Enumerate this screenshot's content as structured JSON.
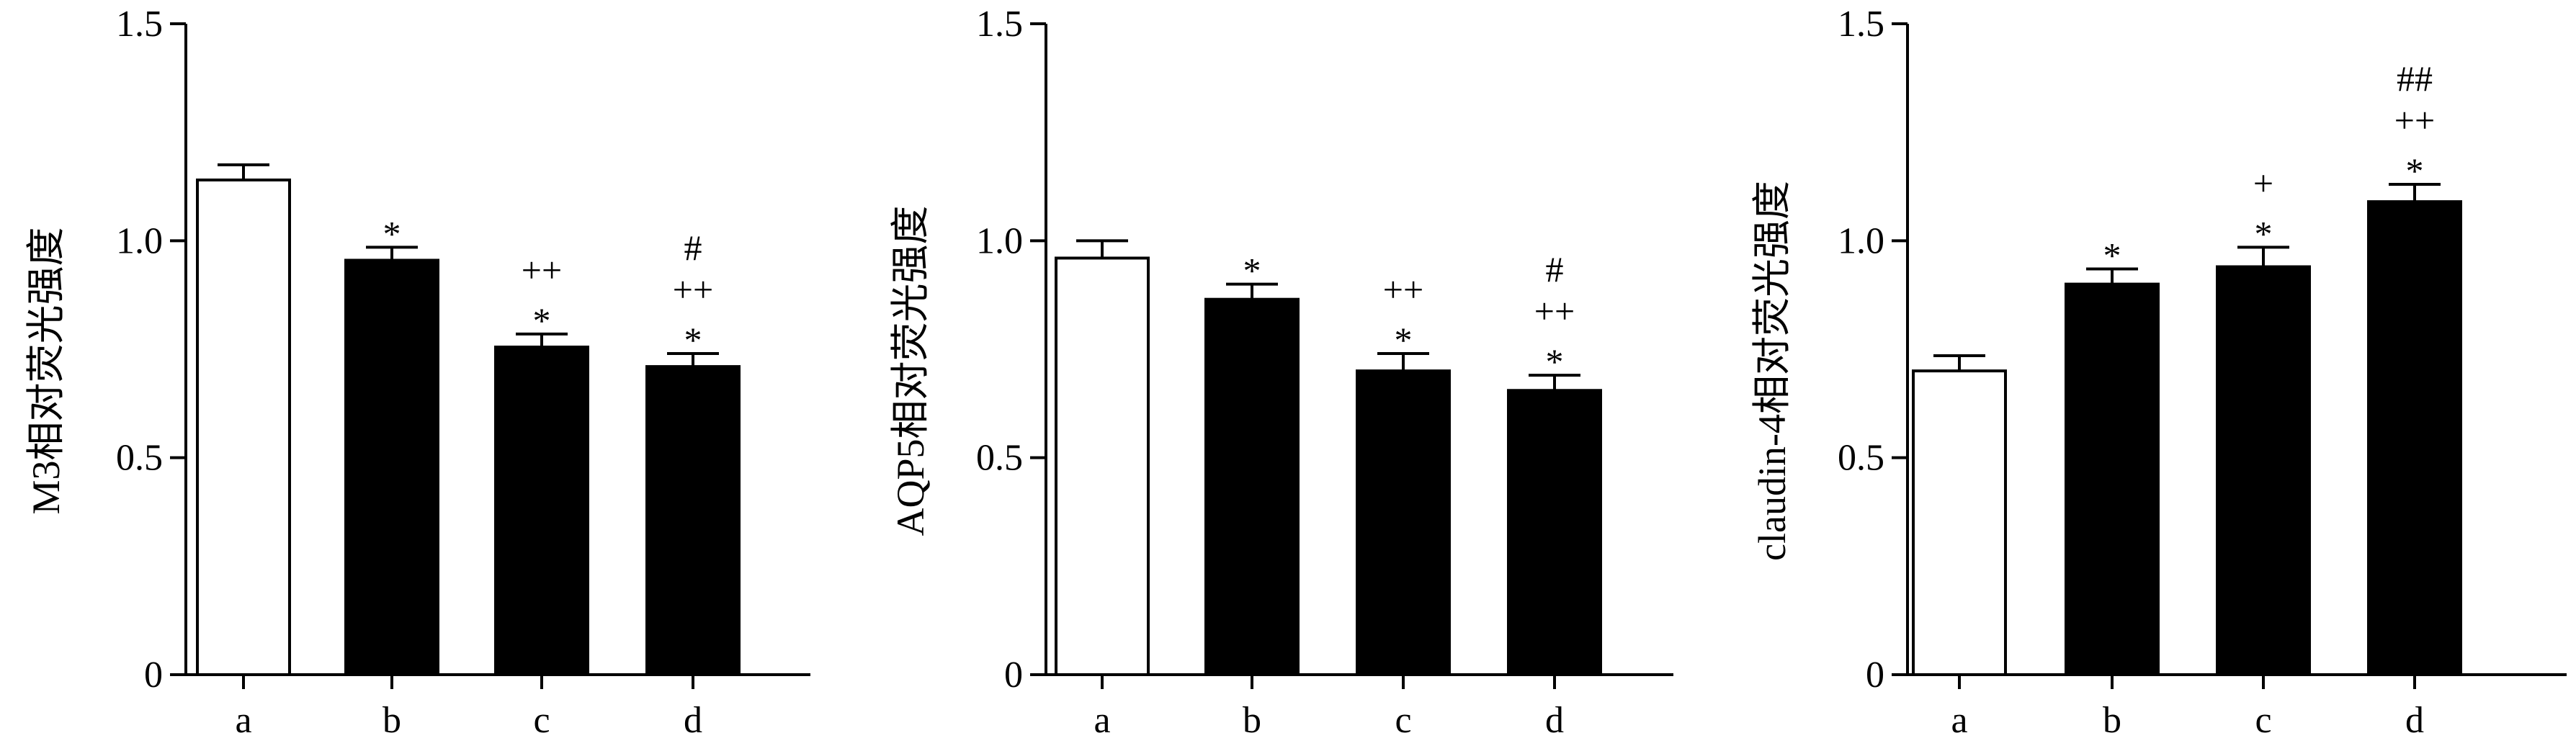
{
  "chart_data": [
    {
      "type": "bar",
      "ylabel": "M3相对荧光强度",
      "categories": [
        "a",
        "b",
        "c",
        "d"
      ],
      "values": [
        1.14,
        0.955,
        0.755,
        0.71
      ],
      "errors": [
        0.035,
        0.03,
        0.03,
        0.03
      ],
      "fills": [
        "#ffffff",
        "#000000",
        "#000000",
        "#000000"
      ],
      "annotations": [
        [],
        [
          "*"
        ],
        [
          "*",
          "++"
        ],
        [
          "*",
          "++",
          "#"
        ]
      ],
      "ylim": [
        0,
        1.5
      ],
      "yticks": [
        0,
        0.5,
        1.0,
        1.5
      ],
      "ytick_labels": [
        "0",
        "0.5",
        "1.0",
        "1.5"
      ]
    },
    {
      "type": "bar",
      "ylabel": "AQP5相对荧光强度",
      "categories": [
        "a",
        "b",
        "c",
        "d"
      ],
      "values": [
        0.96,
        0.865,
        0.7,
        0.655
      ],
      "errors": [
        0.04,
        0.035,
        0.04,
        0.035
      ],
      "fills": [
        "#ffffff",
        "#000000",
        "#000000",
        "#000000"
      ],
      "annotations": [
        [],
        [
          "*"
        ],
        [
          "*",
          "++"
        ],
        [
          "*",
          "++",
          "#"
        ]
      ],
      "ylim": [
        0,
        1.5
      ],
      "yticks": [
        0,
        0.5,
        1.0,
        1.5
      ],
      "ytick_labels": [
        "0",
        "0.5",
        "1.0",
        "1.5"
      ]
    },
    {
      "type": "bar",
      "ylabel": "claudin-4相对荧光强度",
      "categories": [
        "a",
        "b",
        "c",
        "d"
      ],
      "values": [
        0.7,
        0.9,
        0.94,
        1.09
      ],
      "errors": [
        0.035,
        0.035,
        0.045,
        0.04
      ],
      "fills": [
        "#ffffff",
        "#000000",
        "#000000",
        "#000000"
      ],
      "annotations": [
        [],
        [
          "*"
        ],
        [
          "*",
          "+"
        ],
        [
          "*",
          "++",
          "##"
        ]
      ],
      "ylim": [
        0,
        1.5
      ],
      "yticks": [
        0,
        0.5,
        1.0,
        1.5
      ],
      "ytick_labels": [
        "0",
        "0.5",
        "1.0",
        "1.5"
      ]
    }
  ]
}
